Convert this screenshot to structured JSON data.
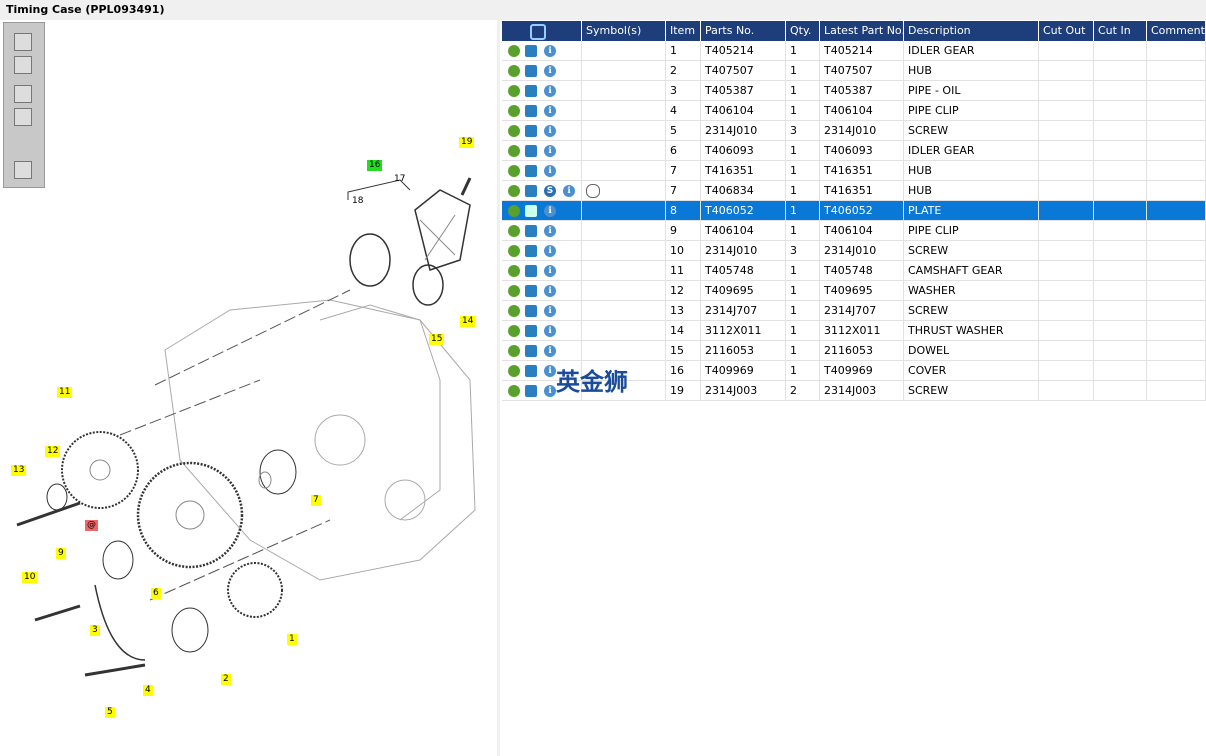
{
  "title": "Timing Case (PPL093491)",
  "table": {
    "headers": [
      "Symbol(s)",
      "Item",
      "Parts No.",
      "Qty.",
      "Latest Part No.",
      "Description",
      "Cut Out",
      "Cut In",
      "Comment"
    ],
    "rows": [
      {
        "item": 1,
        "part_no": "T405214",
        "qty": 1,
        "latest": "T405214",
        "description": "IDLER GEAR"
      },
      {
        "item": 2,
        "part_no": "T407507",
        "qty": 1,
        "latest": "T407507",
        "description": "HUB"
      },
      {
        "item": 3,
        "part_no": "T405387",
        "qty": 1,
        "latest": "T405387",
        "description": "PIPE - OIL"
      },
      {
        "item": 4,
        "part_no": "T406104",
        "qty": 1,
        "latest": "T406104",
        "description": "PIPE CLIP"
      },
      {
        "item": 5,
        "part_no": "2314J010",
        "qty": 3,
        "latest": "2314J010",
        "description": "SCREW"
      },
      {
        "item": 6,
        "part_no": "T406093",
        "qty": 1,
        "latest": "T406093",
        "description": "IDLER GEAR"
      },
      {
        "item": 7,
        "part_no": "T416351",
        "qty": 1,
        "latest": "T416351",
        "description": "HUB"
      },
      {
        "item": 7,
        "part_no": "T406834",
        "qty": 1,
        "latest": "T416351",
        "description": "HUB",
        "symbol": "S"
      },
      {
        "item": 8,
        "part_no": "T406052",
        "qty": 1,
        "latest": "T406052",
        "description": "PLATE"
      },
      {
        "item": 9,
        "part_no": "T406104",
        "qty": 1,
        "latest": "T406104",
        "description": "PIPE CLIP"
      },
      {
        "item": 10,
        "part_no": "2314J010",
        "qty": 3,
        "latest": "2314J010",
        "description": "SCREW"
      },
      {
        "item": 11,
        "part_no": "T405748",
        "qty": 1,
        "latest": "T405748",
        "description": "CAMSHAFT GEAR"
      },
      {
        "item": 12,
        "part_no": "T409695",
        "qty": 1,
        "latest": "T409695",
        "description": "WASHER"
      },
      {
        "item": 13,
        "part_no": "2314J707",
        "qty": 1,
        "latest": "2314J707",
        "description": "SCREW"
      },
      {
        "item": 14,
        "part_no": "3112X011",
        "qty": 1,
        "latest": "3112X011",
        "description": "THRUST WASHER"
      },
      {
        "item": 15,
        "part_no": "2116053",
        "qty": 1,
        "latest": "2116053",
        "description": "DOWEL"
      },
      {
        "item": 16,
        "part_no": "T409969",
        "qty": 1,
        "latest": "T409969",
        "description": "COVER"
      },
      {
        "item": 19,
        "part_no": "2314J003",
        "qty": 2,
        "latest": "2314J003",
        "description": "SCREW"
      }
    ]
  },
  "watermark": "英金狮",
  "callouts": [
    {
      "label": "19",
      "color": "#ffff00"
    },
    {
      "label": "16",
      "color": "#22dd22"
    },
    {
      "label": "17"
    },
    {
      "label": "18"
    },
    {
      "label": "14",
      "color": "#ffff00"
    },
    {
      "label": "15",
      "color": "#ffff00"
    },
    {
      "label": "11",
      "color": "#ffff00"
    },
    {
      "label": "12",
      "color": "#ffff00"
    },
    {
      "label": "13",
      "color": "#ffff00"
    },
    {
      "label": "7",
      "color": "#ffff00"
    },
    {
      "label": "@",
      "color": "#ee6666"
    },
    {
      "label": "9",
      "color": "#ffff00"
    },
    {
      "label": "10",
      "color": "#ffff00"
    },
    {
      "label": "6",
      "color": "#ffff00"
    },
    {
      "label": "3",
      "color": "#ffff00"
    },
    {
      "label": "1",
      "color": "#ffff00"
    },
    {
      "label": "2",
      "color": "#ffff00"
    },
    {
      "label": "4",
      "color": "#ffff00"
    },
    {
      "label": "5",
      "color": "#ffff00"
    }
  ]
}
